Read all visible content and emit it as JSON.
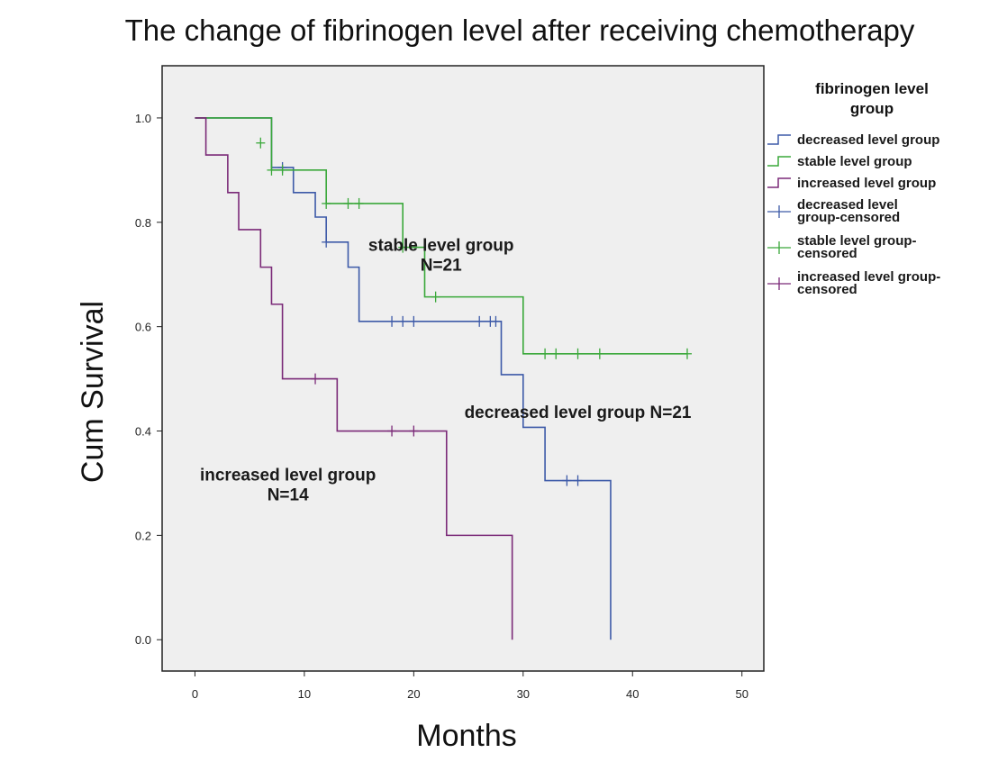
{
  "chart_data": {
    "type": "line",
    "subtype": "kaplan-meier-step",
    "title": "The change of fibrinogen level after  receiving chemotherapy",
    "xlabel": "Months",
    "ylabel": "Cum Survival",
    "xlim": [
      -3,
      52
    ],
    "ylim": [
      -0.06,
      1.1
    ],
    "x_ticks": [
      0,
      10,
      20,
      30,
      40,
      50
    ],
    "y_ticks": [
      0.0,
      0.2,
      0.4,
      0.6,
      0.8,
      1.0
    ],
    "y_tick_labels": [
      "0.0",
      "0.2",
      "0.4",
      "0.6",
      "0.8",
      "1.0"
    ],
    "grid": false,
    "plot_background": "#efefef",
    "legend": {
      "position": "right",
      "title_lines": [
        "fibrinogen level",
        "group"
      ],
      "entries": [
        {
          "lines": [
            "decreased level group"
          ],
          "color": "#3d5aa8",
          "marker": "step"
        },
        {
          "lines": [
            "stable level group"
          ],
          "color": "#3aa83a",
          "marker": "step"
        },
        {
          "lines": [
            "increased level group"
          ],
          "color": "#7b2a78",
          "marker": "step"
        },
        {
          "lines": [
            "decreased level",
            "group-censored"
          ],
          "color": "#3d5aa8",
          "marker": "plus"
        },
        {
          "lines": [
            "stable level group-",
            "censored"
          ],
          "color": "#3aa83a",
          "marker": "plus"
        },
        {
          "lines": [
            "increased level group-",
            "censored"
          ],
          "color": "#7b2a78",
          "marker": "plus"
        }
      ]
    },
    "annotations": [
      {
        "lines": [
          "stable level group",
          "N=21"
        ],
        "x": 22.5,
        "y": 0.745
      },
      {
        "lines": [
          "decreased level group N=21"
        ],
        "x": 35.0,
        "y": 0.425
      },
      {
        "lines": [
          "increased level group",
          "N=14"
        ],
        "x": 8.5,
        "y": 0.305
      }
    ],
    "series": [
      {
        "name": "decreased level group",
        "color": "#3d5aa8",
        "steps": [
          [
            0,
            1.0
          ],
          [
            7,
            0.905
          ],
          [
            9,
            0.857
          ],
          [
            11,
            0.81
          ],
          [
            12,
            0.762
          ],
          [
            14,
            0.714
          ],
          [
            15,
            0.61
          ],
          [
            28,
            0.508
          ],
          [
            30,
            0.407
          ],
          [
            32,
            0.305
          ],
          [
            38,
            0.0
          ]
        ],
        "end_x": 38,
        "censored": [
          [
            8,
            0.905
          ],
          [
            12,
            0.762
          ],
          [
            18,
            0.61
          ],
          [
            19,
            0.61
          ],
          [
            20,
            0.61
          ],
          [
            26,
            0.61
          ],
          [
            27,
            0.61
          ],
          [
            27.5,
            0.61
          ],
          [
            34,
            0.305
          ],
          [
            35,
            0.305
          ]
        ]
      },
      {
        "name": "stable level group",
        "color": "#3aa83a",
        "steps": [
          [
            0,
            1.0
          ],
          [
            7,
            0.9
          ],
          [
            12,
            0.836
          ],
          [
            19,
            0.752
          ],
          [
            21,
            0.657
          ],
          [
            30,
            0.548
          ]
        ],
        "end_x": 45,
        "censored": [
          [
            6,
            0.952
          ],
          [
            7,
            0.9
          ],
          [
            8,
            0.9
          ],
          [
            12,
            0.836
          ],
          [
            14,
            0.836
          ],
          [
            15,
            0.836
          ],
          [
            19,
            0.752
          ],
          [
            22,
            0.657
          ],
          [
            32,
            0.548
          ],
          [
            33,
            0.548
          ],
          [
            35,
            0.548
          ],
          [
            37,
            0.548
          ],
          [
            45,
            0.548
          ]
        ]
      },
      {
        "name": "increased level group",
        "color": "#7b2a78",
        "steps": [
          [
            0,
            1.0
          ],
          [
            1,
            0.929
          ],
          [
            3,
            0.857
          ],
          [
            4,
            0.786
          ],
          [
            6,
            0.714
          ],
          [
            7,
            0.643
          ],
          [
            8,
            0.5
          ],
          [
            13,
            0.4
          ],
          [
            23,
            0.2
          ],
          [
            29,
            0.0
          ]
        ],
        "end_x": 29,
        "censored": [
          [
            11,
            0.5
          ],
          [
            18,
            0.4
          ],
          [
            20,
            0.4
          ]
        ]
      }
    ]
  }
}
